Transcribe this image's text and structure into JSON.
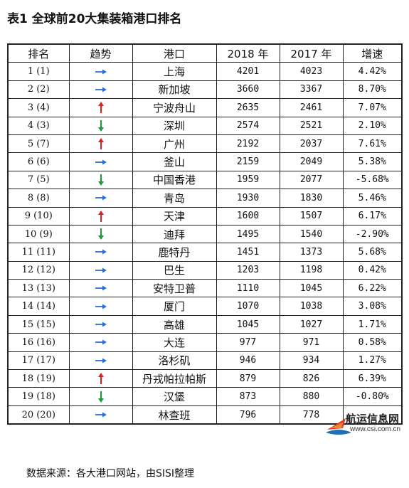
{
  "title": "表1 全球前20大集装箱港口排名",
  "columns": [
    "排名",
    "趋势",
    "港口",
    "2018 年",
    "2017 年",
    "增速"
  ],
  "colors": {
    "up": "#e02020",
    "down": "#1a9a3a",
    "flat": "#2b6cd6"
  },
  "rows": [
    {
      "rank": "1 (1)",
      "trend": "flat",
      "port": "上海",
      "y2018": "4201",
      "y2017": "4023",
      "growth": "4.42%"
    },
    {
      "rank": "2 (2)",
      "trend": "flat",
      "port": "新加坡",
      "y2018": "3660",
      "y2017": "3367",
      "growth": "8.70%"
    },
    {
      "rank": "3 (4)",
      "trend": "up",
      "port": "宁波舟山",
      "y2018": "2635",
      "y2017": "2461",
      "growth": "7.07%"
    },
    {
      "rank": "4 (3)",
      "trend": "down",
      "port": "深圳",
      "y2018": "2574",
      "y2017": "2521",
      "growth": "2.10%"
    },
    {
      "rank": "5 (7)",
      "trend": "up",
      "port": "广州",
      "y2018": "2192",
      "y2017": "2037",
      "growth": "7.61%"
    },
    {
      "rank": "6 (6)",
      "trend": "flat",
      "port": "釜山",
      "y2018": "2159",
      "y2017": "2049",
      "growth": "5.38%"
    },
    {
      "rank": "7 (5)",
      "trend": "down",
      "port": "中国香港",
      "y2018": "1959",
      "y2017": "2077",
      "growth": "-5.68%"
    },
    {
      "rank": "8 (8)",
      "trend": "flat",
      "port": "青岛",
      "y2018": "1930",
      "y2017": "1830",
      "growth": "5.46%"
    },
    {
      "rank": "9 (10)",
      "trend": "up",
      "port": "天津",
      "y2018": "1600",
      "y2017": "1507",
      "growth": "6.17%"
    },
    {
      "rank": "10 (9)",
      "trend": "down",
      "port": "迪拜",
      "y2018": "1495",
      "y2017": "1540",
      "growth": "-2.90%"
    },
    {
      "rank": "11 (11)",
      "trend": "flat",
      "port": "鹿特丹",
      "y2018": "1451",
      "y2017": "1373",
      "growth": "5.68%"
    },
    {
      "rank": "12 (12)",
      "trend": "flat",
      "port": "巴生",
      "y2018": "1203",
      "y2017": "1198",
      "growth": "0.42%"
    },
    {
      "rank": "13 (13)",
      "trend": "flat",
      "port": "安特卫普",
      "y2018": "1110",
      "y2017": "1045",
      "growth": "6.22%"
    },
    {
      "rank": "14 (14)",
      "trend": "flat",
      "port": "厦门",
      "y2018": "1070",
      "y2017": "1038",
      "growth": "3.08%"
    },
    {
      "rank": "15 (15)",
      "trend": "flat",
      "port": "高雄",
      "y2018": "1045",
      "y2017": "1027",
      "growth": "1.71%"
    },
    {
      "rank": "16 (16)",
      "trend": "flat",
      "port": "大连",
      "y2018": "977",
      "y2017": "971",
      "growth": "0.58%"
    },
    {
      "rank": "17 (17)",
      "trend": "flat",
      "port": "洛杉矶",
      "y2018": "946",
      "y2017": "934",
      "growth": "1.27%"
    },
    {
      "rank": "18 (19)",
      "trend": "up",
      "port": "丹戎帕拉帕斯",
      "y2018": "879",
      "y2017": "826",
      "growth": "6.39%"
    },
    {
      "rank": "19 (18)",
      "trend": "down",
      "port": "汉堡",
      "y2018": "873",
      "y2017": "880",
      "growth": "-0.80%"
    },
    {
      "rank": "20 (20)",
      "trend": "flat",
      "port": "林查班",
      "y2018": "796",
      "y2017": "778",
      "growth": ""
    }
  ],
  "footer": "数据来源：各大港口网站，由SISI整理",
  "watermark": {
    "brand": "航运信息网",
    "url": "www.csi.com.cn"
  }
}
